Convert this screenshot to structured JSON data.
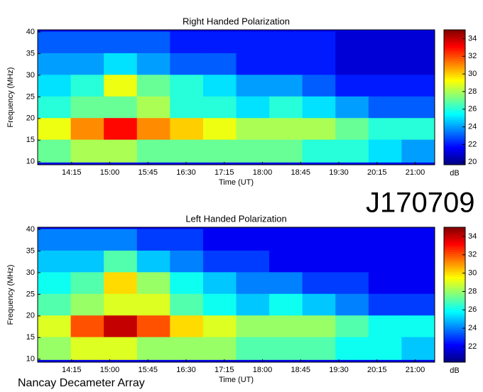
{
  "page_label": "J170709",
  "footer": "Nancay Decameter Array",
  "chart_data": [
    {
      "type": "heatmap",
      "title": "Right Handed Polarization",
      "xlabel": "Time (UT)",
      "ylabel": "Frequency (MHz)",
      "clabel": "dB",
      "colormap": "jet",
      "xlim": [
        815,
        1283
      ],
      "xticks": [
        {
          "value": 855,
          "label": "14:15"
        },
        {
          "value": 900,
          "label": "15:00"
        },
        {
          "value": 945,
          "label": "15:45"
        },
        {
          "value": 990,
          "label": "16:30"
        },
        {
          "value": 1035,
          "label": "17:15"
        },
        {
          "value": 1080,
          "label": "18:00"
        },
        {
          "value": 1125,
          "label": "18:45"
        },
        {
          "value": 1170,
          "label": "19:30"
        },
        {
          "value": 1215,
          "label": "20:15"
        },
        {
          "value": 1260,
          "label": "21:00"
        }
      ],
      "ylim": [
        9.3,
        40.5
      ],
      "yticks": [
        10,
        15,
        20,
        25,
        30,
        35,
        40
      ],
      "clim": [
        19.7,
        35
      ],
      "cticks": [
        20,
        22,
        24,
        26,
        28,
        30,
        32,
        34
      ],
      "x": [
        834.5,
        873.5,
        912.5,
        951.5,
        990.5,
        1029.5,
        1068.5,
        1107.5,
        1146.5,
        1185.5,
        1224.5,
        1263.5
      ],
      "y": [
        37.5,
        32.5,
        27.5,
        22.5,
        17.5,
        12.5
      ],
      "z": [
        [
          23,
          23,
          23,
          23,
          22,
          22,
          22,
          22,
          22,
          21,
          21,
          21
        ],
        [
          24,
          24,
          25,
          24,
          23,
          23,
          22,
          22,
          22,
          21,
          21,
          21
        ],
        [
          25,
          26,
          29,
          27,
          26,
          25,
          24,
          24,
          23,
          22,
          22,
          22
        ],
        [
          26,
          27,
          27,
          28,
          26,
          26,
          25,
          26,
          25,
          24,
          23,
          23
        ],
        [
          29,
          31,
          33,
          31,
          30,
          29,
          28,
          28,
          28,
          27,
          26,
          26
        ],
        [
          27,
          28,
          28,
          27,
          27,
          27,
          27,
          27,
          26,
          26,
          25,
          24
        ]
      ]
    },
    {
      "type": "heatmap",
      "title": "Left Handed Polarization",
      "xlabel": "Time (UT)",
      "ylabel": "Frequency (MHz)",
      "clabel": "dB",
      "colormap": "jet",
      "xlim": [
        815,
        1283
      ],
      "xticks": [
        {
          "value": 855,
          "label": "14:15"
        },
        {
          "value": 900,
          "label": "15:00"
        },
        {
          "value": 945,
          "label": "15:45"
        },
        {
          "value": 990,
          "label": "16:30"
        },
        {
          "value": 1035,
          "label": "17:15"
        },
        {
          "value": 1080,
          "label": "18:00"
        },
        {
          "value": 1125,
          "label": "18:45"
        },
        {
          "value": 1170,
          "label": "19:30"
        },
        {
          "value": 1215,
          "label": "20:15"
        },
        {
          "value": 1260,
          "label": "21:00"
        }
      ],
      "ylim": [
        9.3,
        40.5
      ],
      "yticks": [
        10,
        15,
        20,
        25,
        30,
        35,
        40
      ],
      "clim": [
        20.3,
        35
      ],
      "cticks": [
        22,
        24,
        26,
        28,
        30,
        32,
        34
      ],
      "x": [
        834.5,
        873.5,
        912.5,
        951.5,
        990.5,
        1029.5,
        1068.5,
        1107.5,
        1146.5,
        1185.5,
        1224.5,
        1263.5
      ],
      "y": [
        37.5,
        32.5,
        27.5,
        22.5,
        17.5,
        12.5
      ],
      "z": [
        [
          24,
          24,
          24,
          23,
          23,
          22,
          22,
          22,
          22,
          22,
          22,
          22
        ],
        [
          25,
          25,
          27,
          25,
          24,
          23,
          23,
          22,
          22,
          22,
          22,
          22
        ],
        [
          26,
          27,
          30,
          28,
          26,
          25,
          24,
          24,
          23,
          23,
          22,
          22
        ],
        [
          27,
          28,
          29,
          29,
          27,
          26,
          25,
          26,
          25,
          24,
          23,
          23
        ],
        [
          29,
          32,
          34,
          32,
          30,
          29,
          28,
          28,
          28,
          27,
          26,
          26
        ],
        [
          28,
          29,
          29,
          28,
          28,
          28,
          27,
          27,
          27,
          26,
          26,
          25
        ]
      ]
    }
  ]
}
